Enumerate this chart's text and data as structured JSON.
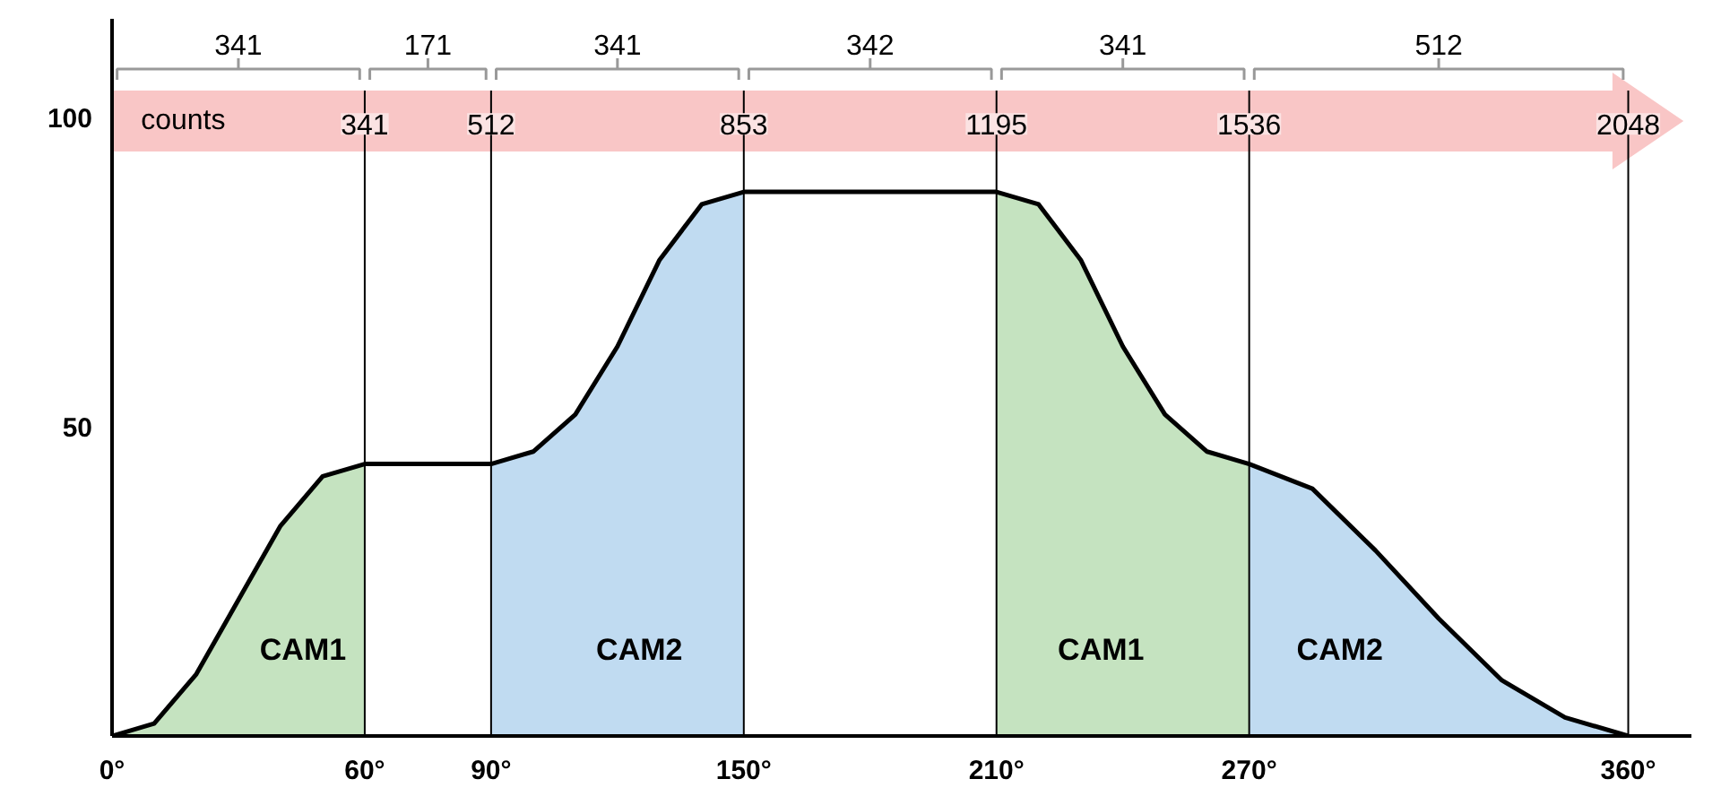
{
  "chart_data": {
    "type": "area",
    "series": [
      {
        "name": "CAM1",
        "color": "#c5e3c0",
        "x": [
          0,
          10,
          20,
          30,
          40,
          50,
          60
        ],
        "values": [
          0,
          2,
          10,
          22,
          34,
          42,
          44
        ]
      },
      {
        "name": "CAM2",
        "color": "#c0dbf1",
        "x": [
          90,
          100,
          110,
          120,
          130,
          140,
          150
        ],
        "values": [
          44,
          46,
          52,
          63,
          77,
          86,
          88
        ]
      },
      {
        "name": "CAM1",
        "color": "#c5e3c0",
        "x": [
          210,
          220,
          230,
          240,
          250,
          260,
          270
        ],
        "values": [
          88,
          86,
          77,
          63,
          52,
          46,
          44
        ]
      },
      {
        "name": "CAM2",
        "color": "#c0dbf1",
        "x": [
          270,
          285,
          300,
          315,
          330,
          345,
          360
        ],
        "values": [
          44,
          40,
          30,
          19,
          9,
          3,
          0
        ]
      },
      {
        "type": "line",
        "color": "#000000",
        "x": [
          0,
          10,
          20,
          30,
          40,
          50,
          60,
          90,
          100,
          110,
          120,
          130,
          140,
          150,
          210,
          220,
          230,
          240,
          250,
          260,
          270,
          285,
          300,
          315,
          330,
          345,
          360
        ],
        "values": [
          0,
          2,
          10,
          22,
          34,
          42,
          44,
          44,
          46,
          52,
          63,
          77,
          86,
          88,
          88,
          86,
          77,
          63,
          52,
          46,
          44,
          40,
          30,
          19,
          9,
          3,
          0
        ]
      }
    ],
    "xlim": [
      0,
      375
    ],
    "ylim": [
      0,
      116
    ],
    "xticks": [
      {
        "value": 0,
        "label": "0°"
      },
      {
        "value": 60,
        "label": "60°"
      },
      {
        "value": 90,
        "label": "90°"
      },
      {
        "value": 150,
        "label": "150°"
      },
      {
        "value": 210,
        "label": "210°"
      },
      {
        "value": 270,
        "label": "270°"
      },
      {
        "value": 360,
        "label": "360°"
      }
    ],
    "yticks": [
      50,
      100
    ],
    "ref_lines": [
      {
        "axis": "x",
        "value": 60,
        "color": "#000000"
      },
      {
        "axis": "x",
        "value": 90,
        "color": "#000000"
      },
      {
        "axis": "x",
        "value": 150,
        "color": "#000000"
      },
      {
        "axis": "x",
        "value": 210,
        "color": "#000000"
      },
      {
        "axis": "x",
        "value": 270,
        "color": "#000000"
      },
      {
        "axis": "x",
        "value": 360,
        "color": "#000000"
      }
    ],
    "annotations": [
      "counts",
      "341",
      "171",
      "341",
      "342",
      "341",
      "512",
      {
        "text": "341",
        "x": 60,
        "y": 99
      },
      {
        "text": "512",
        "x": 90,
        "y": 99
      },
      {
        "text": "853",
        "x": 150,
        "y": 99
      },
      {
        "text": "1195",
        "x": 210,
        "y": 99
      },
      {
        "text": "1536",
        "x": 270,
        "y": 99
      },
      {
        "text": "2048",
        "x": 360,
        "y": 99
      }
    ],
    "grid": false
  }
}
